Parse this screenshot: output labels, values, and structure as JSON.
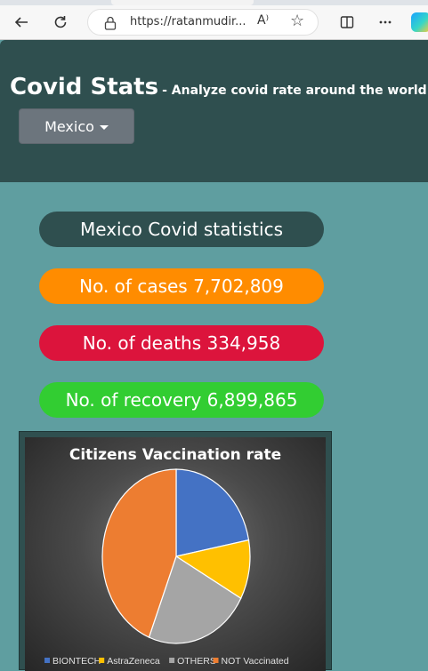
{
  "browser": {
    "url": "https://ratanmudir...",
    "read_aloud": "A⁾"
  },
  "header": {
    "title": "Covid Stats",
    "subtitle": "- Analyze covid rate around the world",
    "country_button": "Mexico"
  },
  "stats": {
    "heading": "Mexico Covid statistics",
    "cases": "No. of cases 7,702,809",
    "deaths": "No. of deaths 334,958",
    "recovery": "No. of recovery 6,899,865",
    "colors": {
      "heading": "#2f4f4f",
      "cases": "#ff8c00",
      "deaths": "#dc143c",
      "recovery": "#32cd32"
    }
  },
  "chart_data": {
    "type": "pie",
    "title": "Citizens Vaccination rate",
    "categories": [
      "BIONTECH",
      "AstraZeneca",
      "OTHERS",
      "NOT Vaccinated"
    ],
    "values": [
      22,
      11,
      23,
      44
    ],
    "colors": [
      "#4472c4",
      "#ffc000",
      "#a5a5a5",
      "#ed7d31"
    ],
    "legend_position": "bottom"
  }
}
